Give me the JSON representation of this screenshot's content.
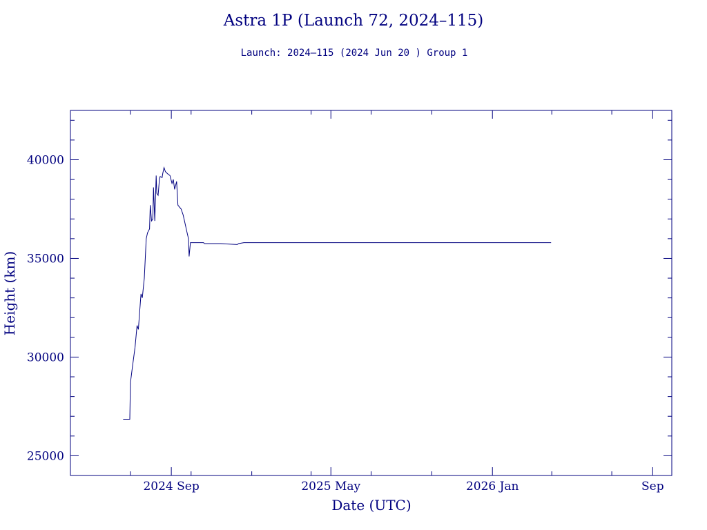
{
  "chart_data": {
    "type": "line",
    "title": "Astra 1P (Launch 72, 2024–115)",
    "subtitle": "Launch: 2024–115  (2024 Jun 20 )  Group 1",
    "xlabel": "Date (UTC)",
    "ylabel": "Height (km)",
    "ylim": [
      24000,
      42500
    ],
    "xlim": [
      "2024-04-01",
      "2026-09-30"
    ],
    "x_tick_labels": [
      {
        "date": "2024-09-01",
        "label": "2024 Sep"
      },
      {
        "date": "2025-05-01",
        "label": "2025 May"
      },
      {
        "date": "2026-01-01",
        "label": "2026 Jan"
      },
      {
        "date": "2026-09-01",
        "label": "Sep"
      }
    ],
    "y_tick_labels": [
      {
        "value": 25000,
        "label": "25000"
      },
      {
        "value": 30000,
        "label": "30000"
      },
      {
        "value": 35000,
        "label": "35000"
      },
      {
        "value": 40000,
        "label": "40000"
      }
    ],
    "grid": false,
    "line_color": "#00007f",
    "series": [
      {
        "x": [
          "2024-06-20",
          "2024-06-30",
          "2024-07-01",
          "2024-07-04",
          "2024-07-08",
          "2024-07-11",
          "2024-07-13",
          "2024-07-17",
          "2024-07-19",
          "2024-07-22",
          "2024-07-25",
          "2024-07-27",
          "2024-07-30",
          "2024-07-31",
          "2024-08-02",
          "2024-08-04",
          "2024-08-05",
          "2024-08-07",
          "2024-08-09",
          "2024-08-10",
          "2024-08-12",
          "2024-08-14",
          "2024-08-15",
          "2024-08-18",
          "2024-08-19",
          "2024-08-21",
          "2024-08-23",
          "2024-08-26",
          "2024-08-30",
          "2024-09-02",
          "2024-09-04",
          "2024-09-06",
          "2024-09-09",
          "2024-09-11",
          "2024-09-16",
          "2024-09-19",
          "2024-09-21",
          "2024-09-23",
          "2024-09-25",
          "2024-09-27",
          "2024-09-28",
          "2024-09-30",
          "2024-10-03",
          "2024-10-06",
          "2024-10-09",
          "2024-10-12",
          "2024-10-15",
          "2024-10-18",
          "2024-10-20",
          "2024-10-21",
          "2024-10-22",
          "2024-10-24",
          "2024-11-15",
          "2024-12-10",
          "2024-12-12",
          "2024-12-20",
          "2025-01-10",
          "2025-01-30",
          "2026-03-31"
        ],
        "y": [
          26850,
          26850,
          28700,
          29500,
          30500,
          31600,
          31400,
          33200,
          33000,
          34000,
          36000,
          36300,
          36500,
          37700,
          36900,
          37000,
          38600,
          36900,
          39200,
          38300,
          38200,
          39000,
          39150,
          39100,
          39300,
          39600,
          39400,
          39300,
          39200,
          38800,
          39000,
          38500,
          38900,
          37700,
          37500,
          37200,
          36900,
          36600,
          36300,
          36000,
          35100,
          35800,
          35800,
          35800,
          35800,
          35800,
          35800,
          35800,
          35800,
          35750,
          35750,
          35750,
          35750,
          35700,
          35750,
          35800,
          35800,
          35800,
          35800
        ]
      }
    ]
  }
}
